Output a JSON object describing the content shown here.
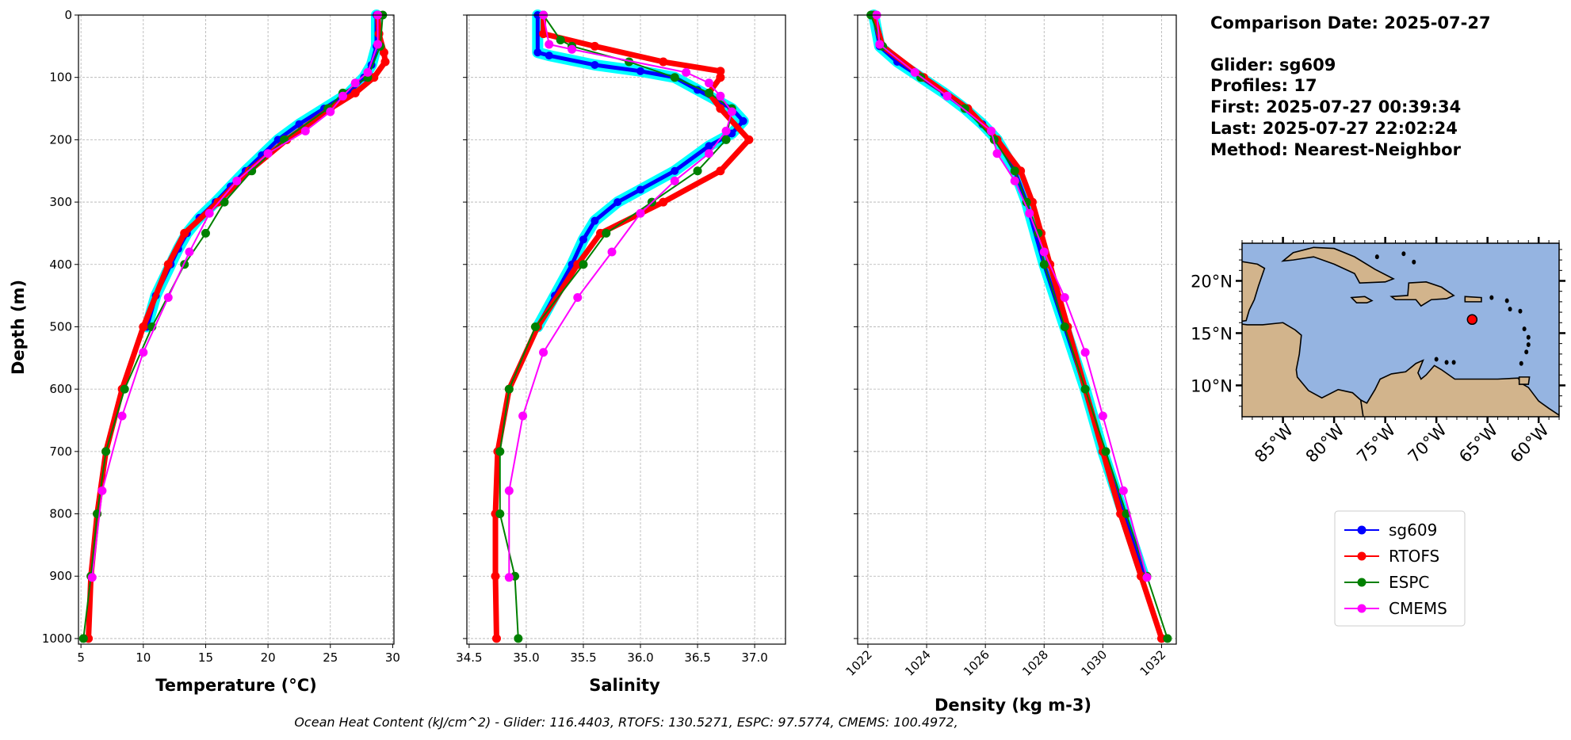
{
  "info": {
    "comparison_date": "Comparison Date: 2025-07-27",
    "glider": "Glider: sg609",
    "profiles": "Profiles: 17",
    "first": "First: 2025-07-27 00:39:34",
    "last": "Last: 2025-07-27 22:02:24",
    "method": "Method: Nearest-Neighbor"
  },
  "footer": "Ocean Heat Content (kJ/cm^2) - Glider: 116.4403,  RTOFS: 130.5271,  ESPC: 97.5774,  CMEMS: 100.4972,",
  "ylabel": "Depth (m)",
  "yticks": [
    "0",
    "100",
    "200",
    "300",
    "400",
    "500",
    "600",
    "700",
    "800",
    "900",
    "1000"
  ],
  "colors": {
    "sg609": "#0000ff",
    "sg609_profiles": "#00ffff",
    "RTOFS": "#ff0000",
    "ESPC": "#008000",
    "CMEMS": "#ff00ff"
  },
  "legend": {
    "placement": "right",
    "entries": [
      "sg609",
      "RTOFS",
      "ESPC",
      "CMEMS"
    ]
  },
  "chart_data": [
    {
      "type": "line",
      "xlabel": "Temperature (°C)",
      "xlim": [
        4.8,
        30.1
      ],
      "ylim": [
        1009,
        0
      ],
      "grid": true,
      "xticks": [
        "5",
        "10",
        "15",
        "20",
        "25",
        "30"
      ],
      "series": [
        {
          "name": "sg609",
          "depth": [
            0,
            50,
            80,
            100,
            125,
            150,
            175,
            200,
            225,
            250,
            275,
            300,
            325,
            350,
            375,
            400,
            450,
            500
          ],
          "values": [
            28.7,
            28.7,
            28.3,
            27.7,
            26.5,
            24.5,
            22.5,
            20.8,
            19.5,
            18.2,
            17.0,
            15.8,
            14.5,
            13.5,
            12.8,
            12.2,
            11.0,
            10.3
          ]
        },
        {
          "name": "RTOFS",
          "depth": [
            0,
            30,
            60,
            75,
            100,
            125,
            150,
            200,
            250,
            300,
            350,
            400,
            500,
            600,
            700,
            800,
            900,
            1000
          ],
          "values": [
            28.8,
            28.9,
            29.3,
            29.4,
            28.5,
            27.0,
            25.0,
            21.5,
            18.5,
            16.0,
            13.3,
            12.0,
            10.0,
            8.3,
            7.0,
            6.3,
            5.8,
            5.6
          ]
        },
        {
          "name": "ESPC",
          "depth": [
            0,
            50,
            100,
            125,
            150,
            200,
            250,
            300,
            350,
            400,
            500,
            600,
            700,
            800,
            900,
            1000
          ],
          "values": [
            29.2,
            29.0,
            28.0,
            26.0,
            24.8,
            21.3,
            18.7,
            16.5,
            15.0,
            13.3,
            10.7,
            8.5,
            7.0,
            6.3,
            5.8,
            5.2
          ]
        },
        {
          "name": "CMEMS",
          "depth": [
            0,
            47,
            92,
            109,
            130,
            155,
            186,
            222,
            266,
            318,
            380,
            453,
            541,
            643,
            763,
            902
          ],
          "values": [
            28.8,
            28.8,
            28.0,
            27.0,
            26.0,
            25.0,
            23.0,
            20.0,
            17.5,
            15.3,
            13.7,
            12.0,
            10.0,
            8.3,
            6.7,
            5.9
          ]
        }
      ]
    },
    {
      "type": "line",
      "xlabel": "Salinity",
      "xlim": [
        34.48,
        37.27
      ],
      "ylim": [
        1009,
        0
      ],
      "grid": true,
      "xticks": [
        "34.5",
        "35.0",
        "35.5",
        "36.0",
        "36.5",
        "37.0"
      ],
      "series": [
        {
          "name": "sg609",
          "depth": [
            0,
            60,
            65,
            80,
            90,
            100,
            120,
            150,
            170,
            190,
            210,
            250,
            280,
            300,
            330,
            360,
            400,
            450,
            500
          ],
          "values": [
            35.1,
            35.1,
            35.2,
            35.6,
            36.0,
            36.3,
            36.5,
            36.8,
            36.9,
            36.8,
            36.6,
            36.3,
            36.0,
            35.8,
            35.6,
            35.5,
            35.4,
            35.25,
            35.1
          ]
        },
        {
          "name": "RTOFS",
          "depth": [
            0,
            30,
            50,
            75,
            90,
            100,
            125,
            150,
            200,
            250,
            300,
            350,
            400,
            500,
            600,
            700,
            800,
            900,
            1000
          ],
          "values": [
            35.15,
            35.15,
            35.6,
            36.2,
            36.7,
            36.7,
            36.6,
            36.7,
            36.95,
            36.7,
            36.2,
            35.65,
            35.45,
            35.1,
            34.85,
            34.75,
            34.73,
            34.73,
            34.74
          ]
        },
        {
          "name": "ESPC",
          "depth": [
            0,
            40,
            50,
            75,
            100,
            125,
            150,
            200,
            250,
            300,
            350,
            400,
            500,
            600,
            700,
            800,
            900,
            1000
          ],
          "values": [
            35.15,
            35.3,
            35.4,
            35.9,
            36.3,
            36.6,
            36.8,
            36.75,
            36.5,
            36.1,
            35.7,
            35.5,
            35.08,
            34.85,
            34.77,
            34.77,
            34.9,
            34.93
          ]
        },
        {
          "name": "CMEMS",
          "depth": [
            0,
            47,
            55,
            92,
            109,
            130,
            155,
            186,
            222,
            266,
            318,
            380,
            453,
            541,
            643,
            763,
            902
          ],
          "values": [
            35.15,
            35.2,
            35.4,
            36.4,
            36.6,
            36.7,
            36.8,
            36.75,
            36.6,
            36.3,
            36.0,
            35.75,
            35.45,
            35.15,
            34.97,
            34.85,
            34.85
          ]
        }
      ]
    },
    {
      "type": "line",
      "xlabel": "Density (kg m-3)",
      "xlim": [
        1021.65,
        1032.5
      ],
      "ylim": [
        1009,
        0
      ],
      "grid": true,
      "xticks": [
        "1022",
        "1024",
        "1026",
        "1028",
        "1030",
        "1032"
      ],
      "series": [
        {
          "name": "sg609",
          "depth": [
            0,
            50,
            75,
            100,
            125,
            150,
            175,
            200,
            250,
            300,
            400,
            500,
            600,
            700,
            800,
            900
          ],
          "values": [
            1022.2,
            1022.4,
            1023.0,
            1023.8,
            1024.6,
            1025.3,
            1025.9,
            1026.4,
            1027.0,
            1027.4,
            1028.0,
            1028.7,
            1029.4,
            1030.0,
            1030.7,
            1031.4
          ]
        },
        {
          "name": "RTOFS",
          "depth": [
            0,
            50,
            100,
            150,
            200,
            250,
            300,
            350,
            400,
            500,
            600,
            700,
            800,
            900,
            1000
          ],
          "values": [
            1022.2,
            1022.5,
            1023.9,
            1025.4,
            1026.4,
            1027.2,
            1027.6,
            1027.9,
            1028.2,
            1028.8,
            1029.4,
            1030.0,
            1030.6,
            1031.3,
            1032.0
          ]
        },
        {
          "name": "ESPC",
          "depth": [
            0,
            50,
            100,
            150,
            200,
            250,
            300,
            350,
            400,
            500,
            600,
            700,
            800,
            900,
            1000
          ],
          "values": [
            1022.1,
            1022.5,
            1023.8,
            1025.3,
            1026.3,
            1027.0,
            1027.4,
            1027.8,
            1028.0,
            1028.7,
            1029.4,
            1030.1,
            1030.8,
            1031.5,
            1032.2
          ]
        },
        {
          "name": "CMEMS",
          "depth": [
            0,
            47,
            92,
            130,
            186,
            222,
            266,
            318,
            380,
            453,
            541,
            643,
            763,
            902
          ],
          "values": [
            1022.3,
            1022.4,
            1023.6,
            1024.7,
            1026.2,
            1026.4,
            1027.0,
            1027.5,
            1028.0,
            1028.7,
            1029.4,
            1030.0,
            1030.7,
            1031.5
          ]
        }
      ]
    }
  ],
  "map": {
    "extent": {
      "lon": [
        -89.0,
        -58.0
      ],
      "lat": [
        7.0,
        23.6
      ]
    },
    "lat_ticks": [
      {
        "value": 20,
        "label": "20°N"
      },
      {
        "value": 15,
        "label": "15°N"
      },
      {
        "value": 10,
        "label": "10°N"
      }
    ],
    "lon_ticks": [
      {
        "value": -85,
        "label": "85°W"
      },
      {
        "value": -80,
        "label": "80°W"
      },
      {
        "value": -75,
        "label": "75°W"
      },
      {
        "value": -70,
        "label": "70°W"
      },
      {
        "value": -65,
        "label": "65°W"
      },
      {
        "value": -60,
        "label": "60°W"
      }
    ],
    "glider_position": {
      "lon": -66.5,
      "lat": 16.3
    },
    "ocean_color": "#95b4e1",
    "land_color": "#d2b48c",
    "marker_color": "#ff0000"
  }
}
